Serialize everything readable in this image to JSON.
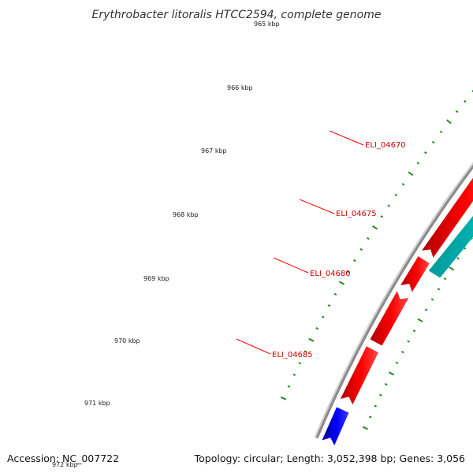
{
  "title": "Erythrobacter litoralis HTCC2594, complete genome",
  "footer": {
    "accession": "Accession: NC_007722",
    "summary": "Topology: circular; Length: 3,052,398 bp; Genes: 3,056"
  },
  "ticks": [
    "965 kbp",
    "966 kbp",
    "967 kbp",
    "968 kbp",
    "969 kbp",
    "970 kbp",
    "971 kbp",
    "972 kbp"
  ],
  "genes": [
    "ELI_04670",
    "ELI_04675",
    "ELI_04680",
    "ELI_04685"
  ],
  "colors": {
    "backbone": "#8c8c8c",
    "forward_gene": "#ff0000",
    "forward_gene_other": "#0000ff",
    "reverse_gene": "#00cccc",
    "tick": "#228b22",
    "label_line": "#ff0000"
  }
}
